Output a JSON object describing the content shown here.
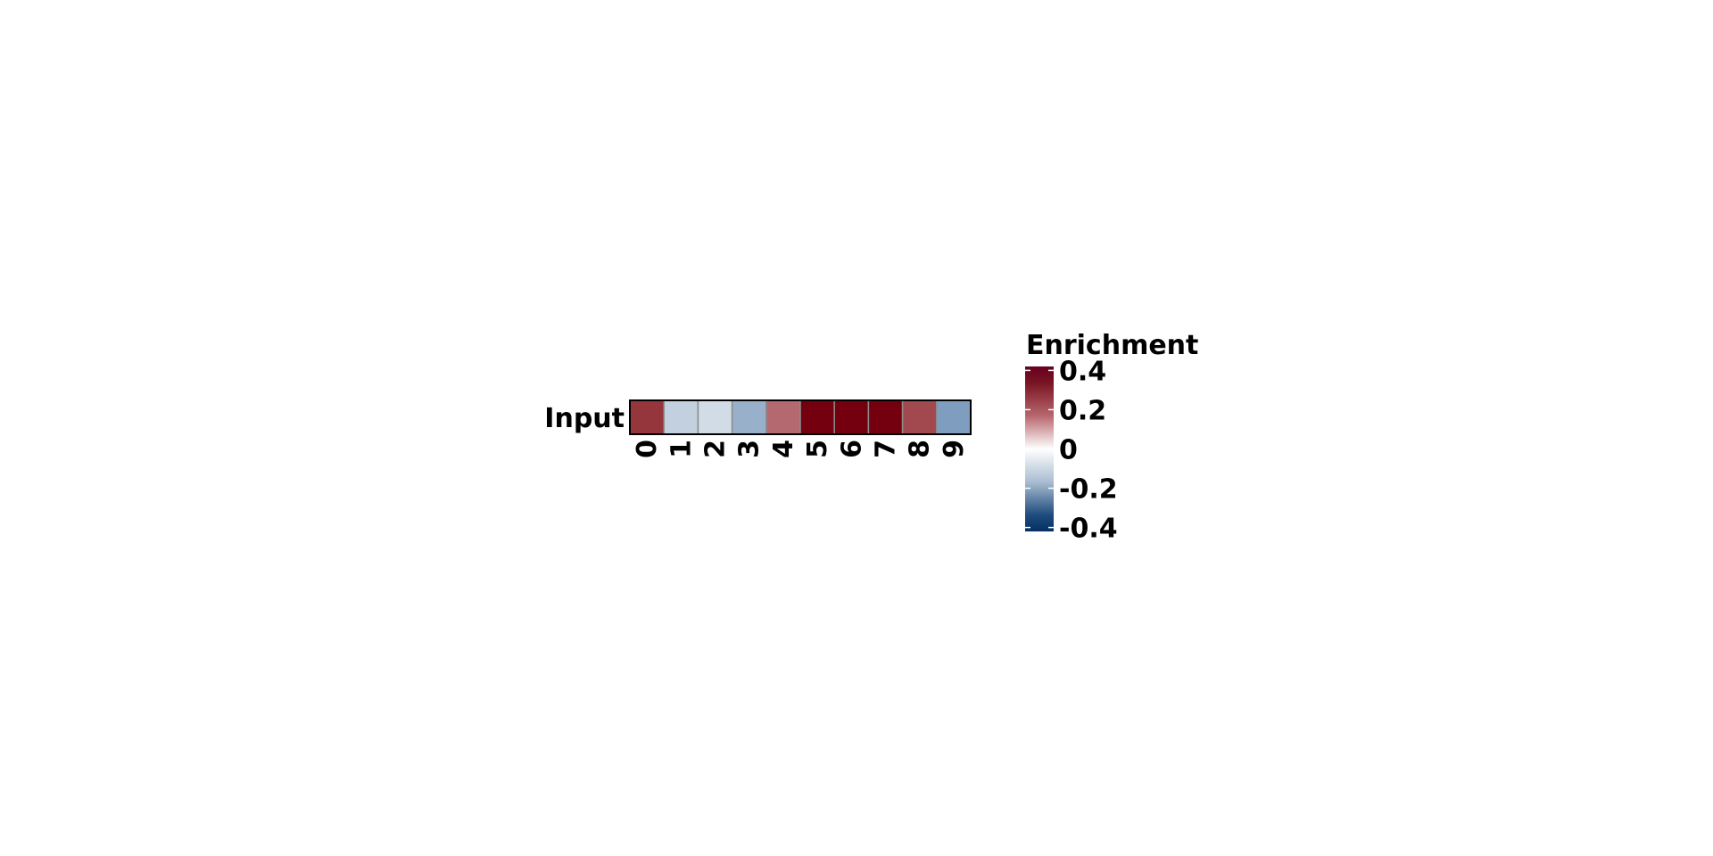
{
  "chart_data": {
    "type": "heatmap",
    "rows": [
      "Input"
    ],
    "columns": [
      "0",
      "1",
      "2",
      "3",
      "4",
      "5",
      "6",
      "7",
      "8",
      "9"
    ],
    "values": [
      [
        0.34,
        -0.1,
        -0.07,
        -0.19,
        0.24,
        0.5,
        0.5,
        0.5,
        0.3,
        -0.25
      ]
    ],
    "legend": {
      "title": "Enrichment",
      "ticks": [
        0.4,
        0.2,
        0,
        -0.2,
        -0.4
      ],
      "tick_labels": [
        "0.4",
        "0.2",
        "0",
        "-0.2",
        "-0.4"
      ],
      "range": [
        -0.42,
        0.42
      ],
      "placement": "right"
    },
    "colors": {
      "high": "#67001f",
      "mid": "#ffffff",
      "low": "#053061"
    }
  }
}
